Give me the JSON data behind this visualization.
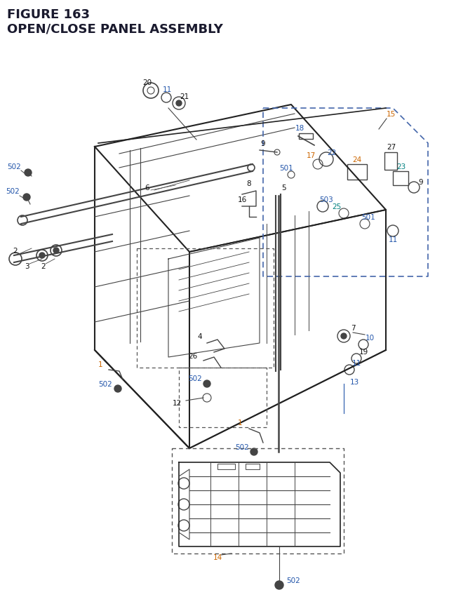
{
  "title_line1": "FIGURE 163",
  "title_line2": "OPEN/CLOSE PANEL ASSEMBLY",
  "bg_color": "#ffffff",
  "title_color": "#1a1a2e",
  "fig_width": 6.4,
  "fig_height": 8.62,
  "labels": {
    "black": [
      "9",
      "6",
      "8",
      "5",
      "4",
      "26",
      "12",
      "2",
      "3",
      "2",
      "21",
      "20",
      "27"
    ],
    "blue": [
      "18",
      "22",
      "7",
      "10",
      "19",
      "13",
      "502",
      "502",
      "502",
      "502",
      "502",
      "502",
      "501",
      "501",
      "503",
      "16",
      "11",
      "11"
    ],
    "orange": [
      "15",
      "17",
      "24",
      "1",
      "1",
      "14",
      "502"
    ],
    "teal": [
      "25",
      "23"
    ]
  }
}
